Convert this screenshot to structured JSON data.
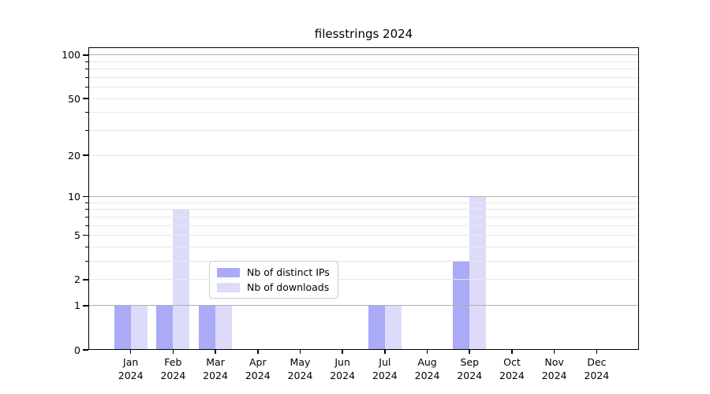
{
  "figure": {
    "title": "filesstrings 2024"
  },
  "chart_data": {
    "type": "bar",
    "title": "filesstrings 2024",
    "x_categories": [
      "Jan",
      "Feb",
      "Mar",
      "Apr",
      "May",
      "Jun",
      "Jul",
      "Aug",
      "Sep",
      "Oct",
      "Nov",
      "Dec"
    ],
    "x_sub_label": "2024",
    "series": [
      {
        "name": "Nb of distinct IPs",
        "color": "#aaaaf6",
        "values": [
          1,
          1,
          1,
          0,
          0,
          0,
          1,
          0,
          3,
          0,
          0,
          0
        ]
      },
      {
        "name": "Nb of downloads",
        "color": "#dcdcfa",
        "values": [
          1,
          8,
          1,
          0,
          0,
          0,
          1,
          0,
          10,
          0,
          0,
          0
        ]
      }
    ],
    "y_scale": "log1p",
    "y_axis": {
      "tick_labels": [
        0,
        1,
        2,
        5,
        10,
        20,
        50,
        100
      ],
      "major_gridlines": [
        1,
        10,
        100
      ],
      "minor_gridlines": [
        2,
        3,
        4,
        5,
        6,
        7,
        8,
        9,
        20,
        30,
        40,
        50,
        60,
        70,
        80,
        90
      ],
      "min_value": 0,
      "max_value": 113
    },
    "legend": {
      "position": "lower-center",
      "entries": [
        "Nb of distinct IPs",
        "Nb of downloads"
      ]
    },
    "grid": true,
    "grid_above_bars": true
  },
  "colors": {
    "background": "#ffffff",
    "spine": "#000000",
    "major_grid": "#b0b0b0",
    "minor_grid": "#e8e8e8",
    "text": "#000000",
    "legend_border": "#cccccc"
  }
}
